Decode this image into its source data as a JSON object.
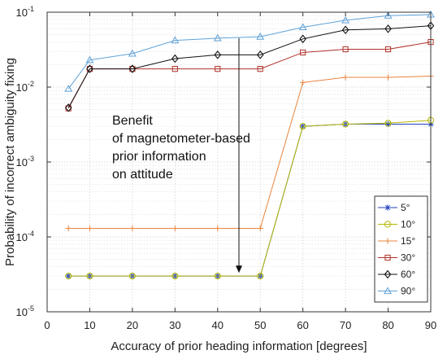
{
  "chart_data": {
    "type": "line",
    "xlabel": "Accuracy of prior heading information [degrees]",
    "ylabel": "Probability of incorrect ambiguity fixing",
    "xlim": [
      0,
      90
    ],
    "ylim": [
      1e-05,
      0.1
    ],
    "y_scale": "log",
    "grid": true,
    "legend_position": "bottom-right",
    "x_ticks": [
      "0",
      "10",
      "20",
      "30",
      "40",
      "50",
      "60",
      "70",
      "80",
      "90"
    ],
    "y_ticks": [
      {
        "base": "10",
        "exp": "-5"
      },
      {
        "base": "10",
        "exp": "-4"
      },
      {
        "base": "10",
        "exp": "-3"
      },
      {
        "base": "10",
        "exp": "-2"
      },
      {
        "base": "10",
        "exp": "-1"
      }
    ],
    "x": [
      5,
      10,
      20,
      30,
      40,
      50,
      60,
      70,
      80,
      90
    ],
    "series": [
      {
        "name": "5°",
        "color": "#1f3fbf",
        "marker": "asterisk",
        "values": [
          3e-05,
          3e-05,
          3e-05,
          3e-05,
          3e-05,
          3e-05,
          0.003,
          0.0032,
          0.0032,
          0.0032
        ]
      },
      {
        "name": "10°",
        "color": "#b5b800",
        "marker": "circle",
        "values": [
          3e-05,
          3e-05,
          3e-05,
          3e-05,
          3e-05,
          3e-05,
          0.003,
          0.0032,
          0.0033,
          0.0036
        ]
      },
      {
        "name": "15°",
        "color": "#e8843c",
        "marker": "plus",
        "values": [
          0.00013,
          0.00013,
          0.00013,
          0.00013,
          0.00013,
          0.00013,
          0.0115,
          0.0135,
          0.0135,
          0.014
        ]
      },
      {
        "name": "30°",
        "color": "#b0312a",
        "marker": "square",
        "values": [
          0.0052,
          0.0175,
          0.0175,
          0.0175,
          0.0175,
          0.0175,
          0.029,
          0.032,
          0.032,
          0.04
        ]
      },
      {
        "name": "60°",
        "color": "#111111",
        "marker": "diamond",
        "values": [
          0.0053,
          0.0175,
          0.0175,
          0.024,
          0.027,
          0.027,
          0.044,
          0.058,
          0.06,
          0.066
        ]
      },
      {
        "name": "90°",
        "color": "#5fa2d8",
        "marker": "triangle",
        "values": [
          0.0095,
          0.023,
          0.028,
          0.042,
          0.045,
          0.047,
          0.063,
          0.078,
          0.09,
          0.093
        ]
      }
    ],
    "annotation": {
      "lines": [
        "Benefit",
        "of magnetometer-based",
        "prior information",
        "on attitude"
      ],
      "arrow_x": 45,
      "arrow_from": 0.045,
      "arrow_to": 3.3e-05
    }
  }
}
